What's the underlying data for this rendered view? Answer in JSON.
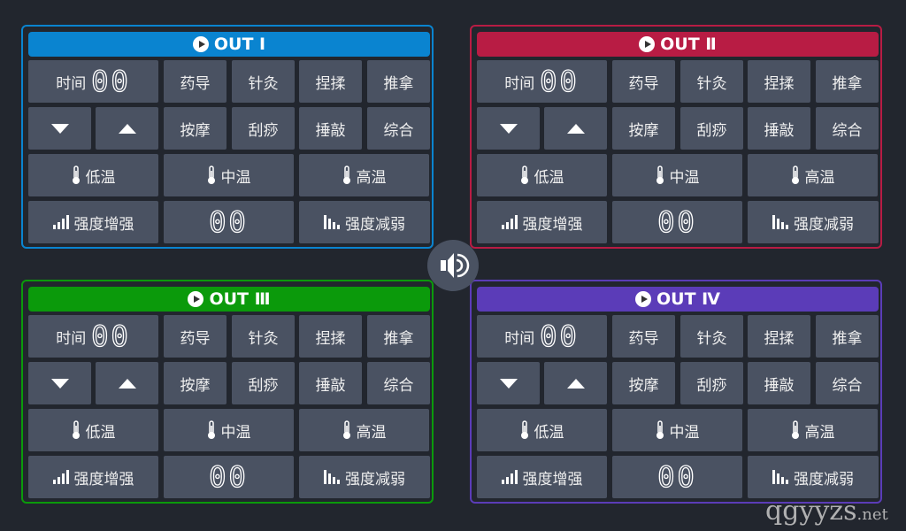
{
  "panels": [
    {
      "title": "OUT Ⅰ",
      "color": "#0a84d0"
    },
    {
      "title": "OUT Ⅱ",
      "color": "#b81c44"
    },
    {
      "title": "OUT Ⅲ",
      "color": "#0b9a0b"
    },
    {
      "title": "OUT Ⅳ",
      "color": "#5b3cb8"
    }
  ],
  "labels": {
    "time": "时间",
    "time_value": "00",
    "modes": [
      "药导",
      "针灸",
      "捏揉",
      "推拿",
      "按摩",
      "刮痧",
      "捶敲",
      "综合"
    ],
    "temps": [
      "低温",
      "中温",
      "高温"
    ],
    "increase": "强度增强",
    "intensity_value": "00",
    "decrease": "强度减弱"
  },
  "icons": {
    "header": "play-circle-icon",
    "down": "triangle-down-icon",
    "up": "triangle-up-icon",
    "temp": "thermometer-icon",
    "inc": "signal-increase-icon",
    "dec": "signal-decrease-icon",
    "speaker": "speaker-icon"
  },
  "watermark": {
    "main": "qgyyzs",
    "suffix": ".net"
  }
}
